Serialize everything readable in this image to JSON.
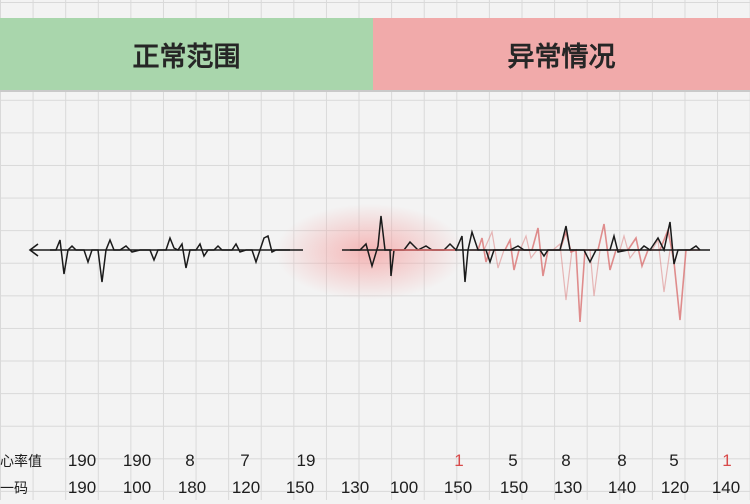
{
  "headers": {
    "normal": "正常范围",
    "abnormal": "异常情况"
  },
  "rows": [
    {
      "label": "心率值",
      "values": [
        "190",
        "190",
        "8",
        "7",
        "19",
        "1",
        "5",
        "8",
        "8",
        "5",
        "1"
      ]
    },
    {
      "label": "一码",
      "values": [
        "190",
        "100",
        "180",
        "120",
        "150",
        "130",
        "100",
        "150",
        "150",
        "130",
        "140",
        "120",
        "140"
      ]
    }
  ],
  "colors": {
    "normal": "#a9d6ac",
    "abnormal": "#f1aaaa",
    "trace": "#1a1a1a",
    "trace_red": "#d86a6a"
  }
}
